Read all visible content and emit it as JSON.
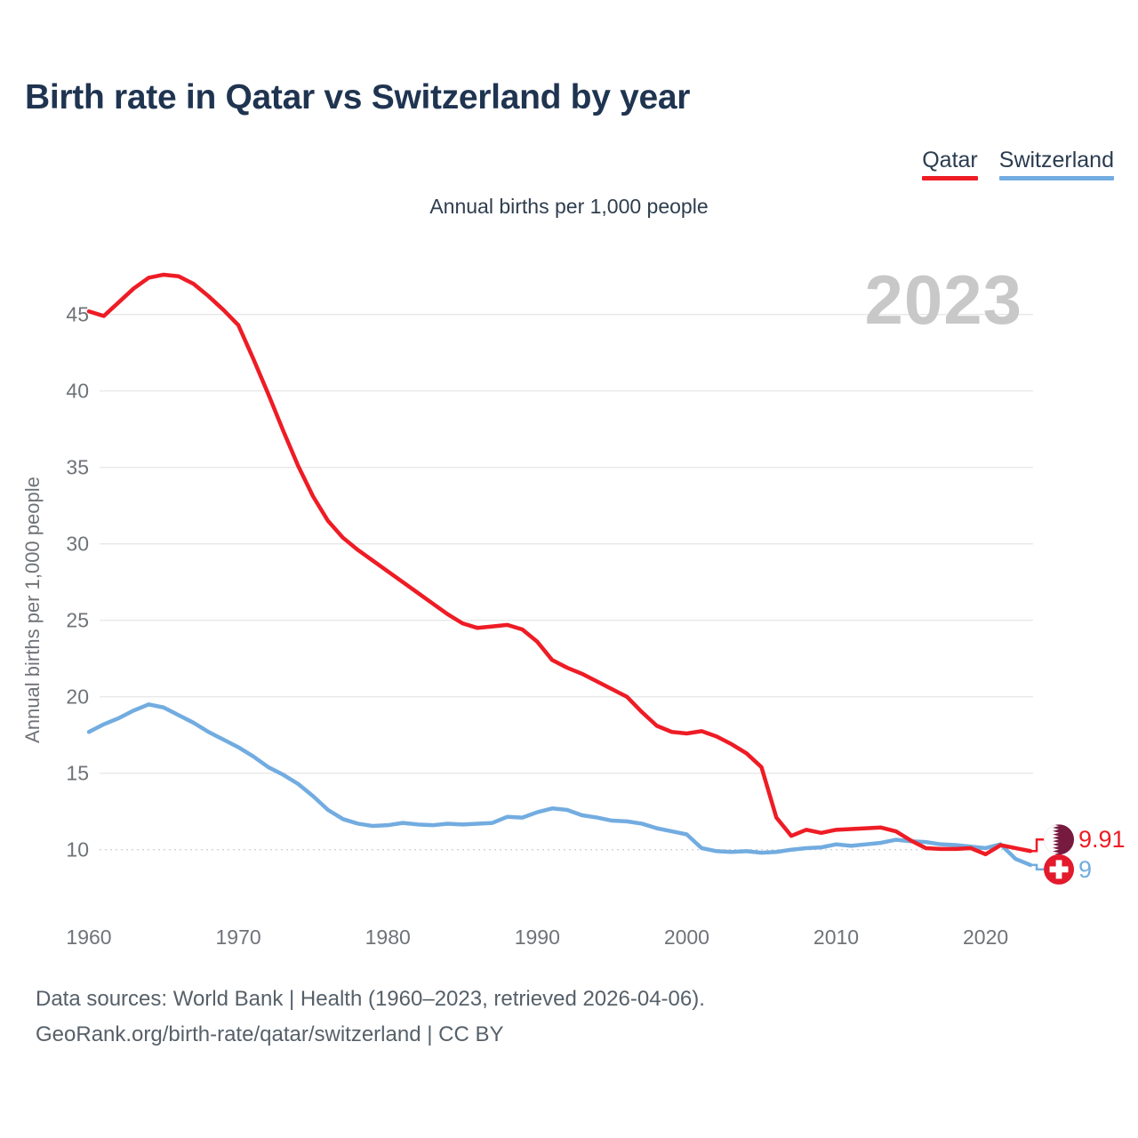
{
  "page": {
    "title": "Birth rate in Qatar vs Switzerland by year",
    "subtitle": "Annual births per 1,000 people",
    "watermark": "2023",
    "footer_line1": "Data sources: World Bank | Health (1960–2023, retrieved 2026-04-06).",
    "footer_line2": "GeoRank.org/birth-rate/qatar/switzerland | CC BY"
  },
  "legend": [
    {
      "label": "Qatar",
      "color": "#ee1c25"
    },
    {
      "label": "Switzerland",
      "color": "#72ace0"
    }
  ],
  "colors": {
    "title": "#1f3450",
    "tick_label": "#6f7378",
    "gridline": "#e8e8e8",
    "dotted_gridline": "#d2d2d2",
    "watermark": "#c8c8c8",
    "footer": "#566069",
    "qatar_line": "#ee1c25",
    "switzerland_line": "#72ace0",
    "qatar_flag_maroon": "#771a3f",
    "qatar_flag_white": "#ffffff",
    "swiss_flag_red": "#e3192c",
    "swiss_flag_cross": "#ffffff"
  },
  "chart_data": {
    "type": "line",
    "title": "Annual births per 1,000 people",
    "xlabel": "",
    "ylabel": "Annual births per 1,000 people",
    "x_ticks": [
      1960,
      1970,
      1980,
      1990,
      2000,
      2010,
      2020
    ],
    "y_ticks": [
      10,
      15,
      20,
      25,
      30,
      35,
      40,
      45
    ],
    "ylim": [
      8,
      48.5
    ],
    "xlim": [
      1960,
      2023
    ],
    "grid": "horizontal-only",
    "legend_position": "top-right",
    "x": [
      1960,
      1961,
      1962,
      1963,
      1964,
      1965,
      1966,
      1967,
      1968,
      1969,
      1970,
      1971,
      1972,
      1973,
      1974,
      1975,
      1976,
      1977,
      1978,
      1979,
      1980,
      1981,
      1982,
      1983,
      1984,
      1985,
      1986,
      1987,
      1988,
      1989,
      1990,
      1991,
      1992,
      1993,
      1994,
      1995,
      1996,
      1997,
      1998,
      1999,
      2000,
      2001,
      2002,
      2003,
      2004,
      2005,
      2006,
      2007,
      2008,
      2009,
      2010,
      2011,
      2012,
      2013,
      2014,
      2015,
      2016,
      2017,
      2018,
      2019,
      2020,
      2021,
      2022,
      2023
    ],
    "series": [
      {
        "name": "Qatar",
        "color": "#ee1c25",
        "end_label": "9.91",
        "end_value": 9.91,
        "values": [
          45.2,
          44.9,
          45.8,
          46.7,
          47.4,
          47.6,
          47.5,
          47.0,
          46.2,
          45.3,
          44.3,
          42.1,
          39.8,
          37.4,
          35.1,
          33.1,
          31.5,
          30.4,
          29.6,
          28.9,
          28.2,
          27.5,
          26.8,
          26.1,
          25.4,
          24.8,
          24.5,
          24.6,
          24.7,
          24.4,
          23.6,
          22.4,
          21.9,
          21.5,
          21.0,
          20.5,
          20.0,
          19.0,
          18.1,
          17.7,
          17.6,
          17.75,
          17.4,
          16.9,
          16.3,
          15.4,
          12.1,
          10.9,
          11.3,
          11.1,
          11.3,
          11.35,
          11.4,
          11.45,
          11.2,
          10.6,
          10.1,
          10.05,
          10.05,
          10.1,
          9.7,
          10.3,
          10.1,
          9.91
        ]
      },
      {
        "name": "Switzerland",
        "color": "#72ace0",
        "end_label": "9",
        "end_value": 9,
        "values": [
          17.7,
          18.2,
          18.6,
          19.1,
          19.5,
          19.3,
          18.8,
          18.3,
          17.7,
          17.2,
          16.7,
          16.1,
          15.4,
          14.9,
          14.3,
          13.5,
          12.6,
          12.0,
          11.7,
          11.55,
          11.6,
          11.75,
          11.65,
          11.6,
          11.7,
          11.65,
          11.7,
          11.75,
          12.15,
          12.1,
          12.45,
          12.7,
          12.6,
          12.25,
          12.1,
          11.9,
          11.85,
          11.7,
          11.4,
          11.2,
          11.0,
          10.1,
          9.9,
          9.85,
          9.9,
          9.8,
          9.85,
          10.0,
          10.1,
          10.15,
          10.35,
          10.25,
          10.35,
          10.45,
          10.65,
          10.55,
          10.5,
          10.35,
          10.3,
          10.2,
          10.1,
          10.35,
          9.4,
          9.0
        ]
      }
    ]
  }
}
